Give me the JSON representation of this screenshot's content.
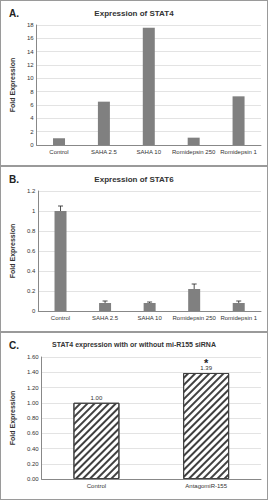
{
  "chart_data": [
    {
      "type": "bar",
      "panel_label": "A.",
      "title": "Expression of STAT4",
      "ylabel": "Fold Expression",
      "categories": [
        "Control",
        "SAHA 2.5",
        "SAHA 10",
        "Romidepsin 250",
        "Romidepsin 1"
      ],
      "values": [
        1,
        6.5,
        17.6,
        1.1,
        7.3
      ],
      "color": "#808080",
      "ylim": [
        0,
        18
      ],
      "yticks": [
        0,
        2,
        4,
        6,
        8,
        10,
        12,
        14,
        16,
        18
      ],
      "grid": true
    },
    {
      "type": "bar",
      "panel_label": "B.",
      "title": "Expression of STAT6",
      "ylabel": "Fold Expression",
      "categories": [
        "Control",
        "SAHA 2.5",
        "SAHA 10",
        "Romidepsin 250",
        "Romidepsin 1"
      ],
      "values": [
        1,
        0.08,
        0.08,
        0.22,
        0.08
      ],
      "errors": [
        0.05,
        0.02,
        0.01,
        0.05,
        0.02
      ],
      "color": "#808080",
      "ylim": [
        0,
        1.2
      ],
      "yticks": [
        0,
        0.2,
        0.4,
        0.6,
        0.8,
        1,
        1.2
      ],
      "grid": true
    },
    {
      "type": "bar",
      "panel_label": "C.",
      "title": "STAT4 expression with or without mi-R155 siRNA",
      "ylabel": "Fold Expression",
      "categories": [
        "Control",
        "AntagomiR-155"
      ],
      "values": [
        1,
        1.39
      ],
      "value_labels": [
        "1.00",
        "1.39"
      ],
      "data_labels": true,
      "color": "#404040",
      "annotations": [
        {
          "text": "*",
          "category": "AntagomiR-155",
          "y": 1.52
        }
      ],
      "ylim": [
        0,
        1.6
      ],
      "yticks": [
        {
          "value": 0,
          "label": "0.00"
        },
        {
          "value": 0.2,
          "label": "0.20"
        },
        {
          "value": 0.4,
          "label": "0.40"
        },
        {
          "value": 0.6,
          "label": "0.60"
        },
        {
          "value": 0.8,
          "label": "0.80"
        },
        {
          "value": 1,
          "label": "1.00"
        },
        {
          "value": 1.2,
          "label": "1.20"
        },
        {
          "value": 1.4,
          "label": "1.40"
        },
        {
          "value": 1.6,
          "label": "1.60"
        }
      ],
      "grid": true
    }
  ]
}
